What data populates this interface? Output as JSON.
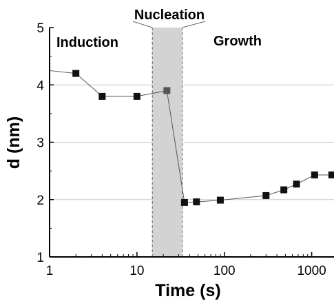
{
  "chart_data": {
    "type": "scatter",
    "title": "",
    "xlabel": "Time (s)",
    "ylabel": "d (nm)",
    "x_scale": "log",
    "xlim": [
      1,
      1800
    ],
    "ylim": [
      1,
      5
    ],
    "x_tick_labels": [
      "1",
      "10",
      "100",
      "1000"
    ],
    "x_tick_values": [
      1,
      10,
      100,
      1000
    ],
    "y_tick_labels": [
      "1",
      "2",
      "3",
      "4",
      "5"
    ],
    "y_tick_values": [
      1,
      2,
      3,
      4,
      5
    ],
    "grid": true,
    "nucleation_band": [
      15,
      33
    ],
    "phase_labels": {
      "induction": "Induction",
      "nucleation": "Nucleation",
      "growth": "Growth"
    },
    "series": [
      {
        "points": [
          {
            "x": 2,
            "y": 4.2
          },
          {
            "x": 4,
            "y": 3.8
          },
          {
            "x": 10,
            "y": 3.8
          },
          {
            "x": 22,
            "y": 3.9
          },
          {
            "x": 35,
            "y": 1.95
          },
          {
            "x": 48,
            "y": 1.96
          },
          {
            "x": 90,
            "y": 1.99
          },
          {
            "x": 300,
            "y": 2.07
          },
          {
            "x": 480,
            "y": 2.17
          },
          {
            "x": 670,
            "y": 2.27
          },
          {
            "x": 1080,
            "y": 2.43
          },
          {
            "x": 1700,
            "y": 2.43
          }
        ],
        "leading_y": 4.25,
        "marker_color": "#111111",
        "highlight_index": 3,
        "highlight_color": "#555555"
      }
    ],
    "colors": {
      "band": "#d3d3d3",
      "grid": "#c8c8c8",
      "line": "#555555",
      "axis": "#000000"
    }
  }
}
